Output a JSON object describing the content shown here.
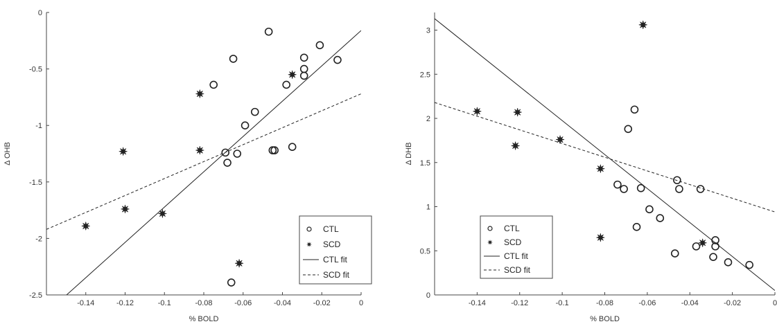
{
  "chart_data": [
    {
      "type": "scatter",
      "title": "",
      "xlabel": "% BOLD",
      "ylabel": "Δ OHB",
      "xlim": [
        -0.16,
        0
      ],
      "ylim": [
        -2.5,
        0
      ],
      "xticks": [
        -0.14,
        -0.12,
        -0.1,
        -0.08,
        -0.06,
        -0.04,
        -0.02,
        0
      ],
      "xtick_labels": [
        "-0.14",
        "-0.12",
        "-0.1",
        "-0.08",
        "-0.06",
        "-0.04",
        "-0.02",
        "0"
      ],
      "yticks": [
        -2.5,
        -2,
        -1.5,
        -1,
        -0.5,
        0
      ],
      "ytick_labels": [
        "-2.5",
        "-2",
        "-1.5",
        "-1",
        "-0.5",
        "0"
      ],
      "grid": false,
      "legend_position": "bottom-right",
      "series": [
        {
          "name": "CTL",
          "marker": "open-circle",
          "x": [
            -0.047,
            -0.065,
            -0.021,
            -0.029,
            -0.029,
            -0.029,
            -0.012,
            -0.038,
            -0.075,
            -0.054,
            -0.059,
            -0.069,
            -0.068,
            -0.063,
            -0.045,
            -0.044,
            -0.035,
            -0.066
          ],
          "y": [
            -0.17,
            -0.41,
            -0.29,
            -0.4,
            -0.5,
            -0.56,
            -0.42,
            -0.64,
            -0.64,
            -0.88,
            -1.0,
            -1.24,
            -1.33,
            -1.25,
            -1.22,
            -1.22,
            -1.19,
            -2.39
          ]
        },
        {
          "name": "SCD",
          "marker": "filled-star",
          "x": [
            -0.035,
            -0.082,
            -0.121,
            -0.082,
            -0.12,
            -0.101,
            -0.14,
            -0.062
          ],
          "y": [
            -0.55,
            -0.72,
            -1.23,
            -1.22,
            -1.74,
            -1.78,
            -1.89,
            -2.22
          ]
        },
        {
          "name": "CTL fit",
          "style": "solid-line",
          "x": [
            -0.16,
            0
          ],
          "y": [
            -2.66,
            -0.16
          ]
        },
        {
          "name": "SCD fit",
          "style": "dashed-line",
          "x": [
            -0.16,
            0
          ],
          "y": [
            -1.92,
            -0.72
          ]
        }
      ]
    },
    {
      "type": "scatter",
      "title": "",
      "xlabel": "% BOLD",
      "ylabel": "Δ DHB",
      "xlim": [
        -0.16,
        0
      ],
      "ylim": [
        0,
        3.2
      ],
      "xticks": [
        -0.14,
        -0.12,
        -0.1,
        -0.08,
        -0.06,
        -0.04,
        -0.02,
        0
      ],
      "xtick_labels": [
        "-0.14",
        "-0.12",
        "-0.1",
        "-0.08",
        "-0.06",
        "-0.04",
        "-0.02",
        "0"
      ],
      "yticks": [
        0,
        0.5,
        1,
        1.5,
        2,
        2.5,
        3
      ],
      "ytick_labels": [
        "0",
        "0.5",
        "1",
        "1.5",
        "2",
        "2.5",
        "3"
      ],
      "grid": false,
      "legend_position": "bottom-left",
      "series": [
        {
          "name": "CTL",
          "marker": "open-circle",
          "x": [
            -0.066,
            -0.069,
            -0.074,
            -0.071,
            -0.063,
            -0.059,
            -0.054,
            -0.065,
            -0.046,
            -0.045,
            -0.035,
            -0.037,
            -0.028,
            -0.028,
            -0.029,
            -0.022,
            -0.012,
            -0.047
          ],
          "y": [
            2.1,
            1.88,
            1.25,
            1.2,
            1.21,
            0.97,
            0.87,
            0.77,
            1.3,
            1.2,
            1.2,
            0.55,
            0.62,
            0.55,
            0.43,
            0.37,
            0.34,
            0.47
          ]
        },
        {
          "name": "SCD",
          "marker": "filled-star",
          "x": [
            -0.062,
            -0.14,
            -0.121,
            -0.122,
            -0.101,
            -0.082,
            -0.082,
            -0.034
          ],
          "y": [
            3.06,
            2.08,
            2.07,
            1.69,
            1.76,
            1.43,
            0.65,
            0.59
          ]
        },
        {
          "name": "CTL fit",
          "style": "solid-line",
          "x": [
            -0.16,
            0
          ],
          "y": [
            3.13,
            0.05
          ]
        },
        {
          "name": "SCD fit",
          "style": "dashed-line",
          "x": [
            -0.16,
            0
          ],
          "y": [
            2.18,
            0.94
          ]
        }
      ]
    }
  ],
  "colors": {
    "ink": "#222222",
    "axis": "#444444",
    "background": "#ffffff"
  }
}
